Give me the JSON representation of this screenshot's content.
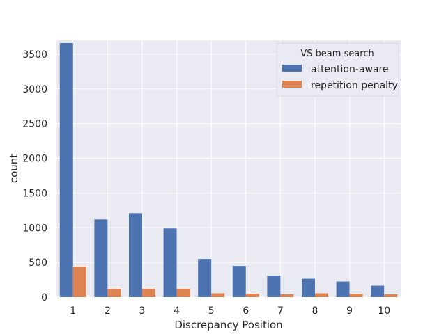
{
  "chart_data": {
    "type": "bar",
    "xlabel": "Discrepancy Position",
    "ylabel": "count",
    "categories": [
      "1",
      "2",
      "3",
      "4",
      "5",
      "6",
      "7",
      "8",
      "9",
      "10"
    ],
    "ylim": [
      0,
      3700
    ],
    "yticks": [
      0,
      500,
      1000,
      1500,
      2000,
      2500,
      3000,
      3500
    ],
    "grid": true,
    "legend": {
      "title": "VS beam search",
      "placement": "top-right"
    },
    "series": [
      {
        "name": "attention-aware",
        "color": "#4c72b0",
        "values": [
          3660,
          1120,
          1210,
          990,
          550,
          450,
          310,
          265,
          225,
          165
        ]
      },
      {
        "name": "repetition penalty",
        "color": "#dd8452",
        "values": [
          440,
          120,
          120,
          120,
          55,
          50,
          40,
          55,
          50,
          40
        ]
      }
    ]
  }
}
